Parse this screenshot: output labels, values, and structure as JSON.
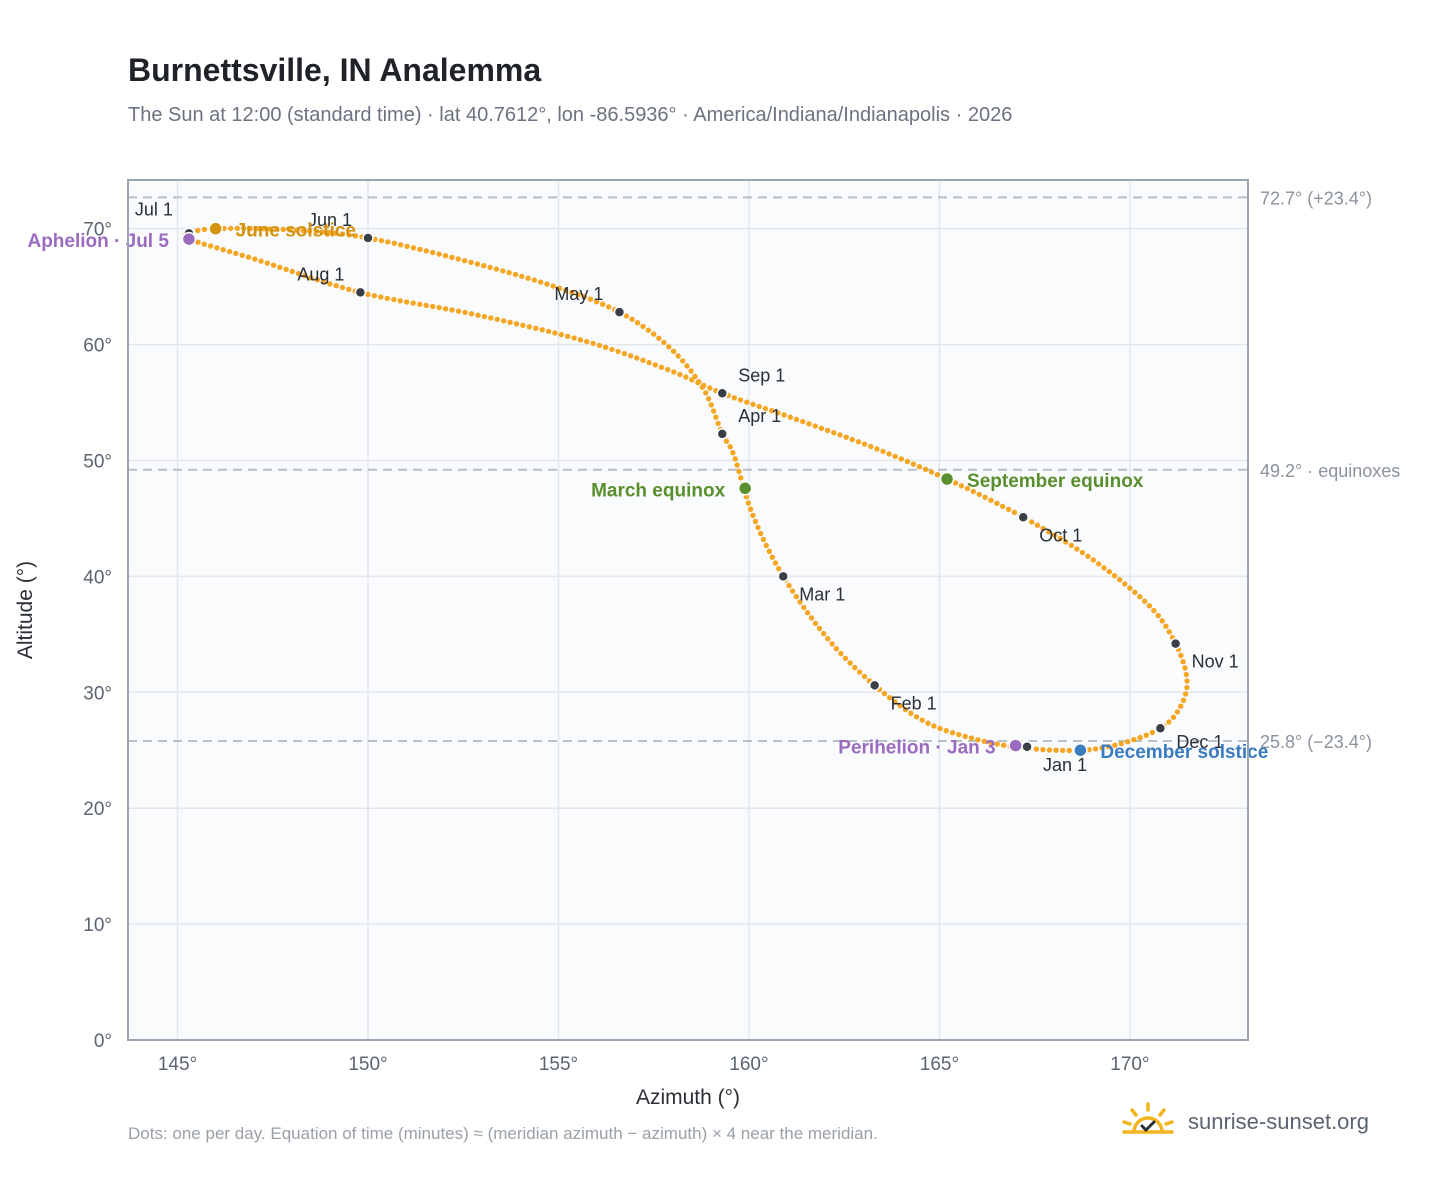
{
  "header": {
    "title": "Burnettsville, IN Analemma",
    "subtitle": "The Sun at 12:00 (standard time) · lat 40.7612°, lon -86.5936° · America/Indiana/Indianapolis · 2026"
  },
  "footer": {
    "note": "Dots: one per day. Equation of time (minutes) ≈ (meridian azimuth − azimuth) × 4 near the meridian.",
    "brand": "sunrise-sunset.org",
    "brand_icon": "sun-check-icon"
  },
  "colors": {
    "curve": "#f5a623",
    "month_marker": "#3a3f47",
    "june_solstice": "#d4920f",
    "december_solstice": "#3b7bbf",
    "equinox": "#5a8f2e",
    "apsides": "#9b6bbf",
    "reference_line": "#b8c0c8",
    "plot_bg": "#f9fbfd",
    "frame": "#9aa5b4"
  },
  "chart_data": {
    "type": "scatter",
    "title": "Burnettsville, IN Analemma",
    "xlabel": "Azimuth (°)",
    "ylabel": "Altitude (°)",
    "xlim": [
      143.7,
      173.1
    ],
    "ylim": [
      0,
      74.2
    ],
    "x_ticks": [
      "145°",
      "150°",
      "155°",
      "160°",
      "165°",
      "170°"
    ],
    "x_tick_values": [
      145,
      150,
      155,
      160,
      165,
      170
    ],
    "y_ticks": [
      "0°",
      "10°",
      "20°",
      "30°",
      "40°",
      "50°",
      "60°",
      "70°"
    ],
    "y_tick_values": [
      0,
      10,
      20,
      30,
      40,
      50,
      60,
      70
    ],
    "grid": true,
    "reference_lines": [
      {
        "y": 72.7,
        "label": "72.7° (+23.4°)"
      },
      {
        "y": 49.2,
        "label": "49.2° · equinoxes"
      },
      {
        "y": 25.8,
        "label": "25.8° (−23.4°)"
      }
    ],
    "month_markers": [
      {
        "label": "Jan 1",
        "x": 167.3,
        "y": 25.3
      },
      {
        "label": "Feb 1",
        "x": 163.3,
        "y": 30.6
      },
      {
        "label": "Mar 1",
        "x": 160.9,
        "y": 40.0
      },
      {
        "label": "Apr 1",
        "x": 159.3,
        "y": 52.3
      },
      {
        "label": "May 1",
        "x": 156.6,
        "y": 62.8
      },
      {
        "label": "Jun 1",
        "x": 150.0,
        "y": 69.2
      },
      {
        "label": "Jul 1",
        "x": 145.3,
        "y": 69.6
      },
      {
        "label": "Aug 1",
        "x": 149.8,
        "y": 64.5
      },
      {
        "label": "Sep 1",
        "x": 159.3,
        "y": 55.8
      },
      {
        "label": "Oct 1",
        "x": 167.2,
        "y": 45.1
      },
      {
        "label": "Nov 1",
        "x": 171.2,
        "y": 34.2
      },
      {
        "label": "Dec 1",
        "x": 170.8,
        "y": 26.9
      }
    ],
    "events": [
      {
        "label": "June solstice",
        "x": 146.0,
        "y": 70.0,
        "color_key": "june_solstice"
      },
      {
        "label": "Aphelion · Jul 5",
        "x": 145.3,
        "y": 69.1,
        "color_key": "apsides"
      },
      {
        "label": "March equinox",
        "x": 159.9,
        "y": 47.6,
        "color_key": "equinox"
      },
      {
        "label": "September equinox",
        "x": 165.2,
        "y": 48.4,
        "color_key": "equinox"
      },
      {
        "label": "Perihelion · Jan 3",
        "x": 167.0,
        "y": 25.4,
        "color_key": "apsides"
      },
      {
        "label": "December solstice",
        "x": 168.7,
        "y": 25.0,
        "color_key": "december_solstice"
      }
    ],
    "series": [
      {
        "points": [
          [
            167.2,
            25.2
          ],
          [
            165.9,
            26.0
          ],
          [
            164.6,
            27.5
          ],
          [
            163.3,
            30.6
          ],
          [
            162.1,
            34.5
          ],
          [
            160.9,
            40.0
          ],
          [
            160.1,
            45.3
          ],
          [
            159.6,
            50.5
          ],
          [
            159.3,
            52.3
          ],
          [
            158.8,
            56.2
          ],
          [
            157.9,
            59.8
          ],
          [
            156.6,
            62.8
          ],
          [
            154.9,
            65.0
          ],
          [
            152.7,
            67.1
          ],
          [
            150.0,
            69.2
          ],
          [
            148.0,
            69.9
          ],
          [
            146.0,
            70.0
          ],
          [
            145.3,
            69.6
          ],
          [
            145.3,
            69.1
          ],
          [
            147.1,
            67.3
          ],
          [
            149.8,
            64.5
          ],
          [
            152.8,
            62.6
          ],
          [
            155.7,
            60.3
          ],
          [
            157.9,
            57.8
          ],
          [
            159.3,
            55.8
          ],
          [
            161.2,
            53.6
          ],
          [
            163.2,
            51.2
          ],
          [
            165.2,
            48.4
          ],
          [
            167.2,
            45.1
          ],
          [
            169.0,
            41.5
          ],
          [
            170.5,
            37.5
          ],
          [
            171.2,
            34.2
          ],
          [
            171.5,
            31.0
          ],
          [
            171.3,
            28.6
          ],
          [
            170.8,
            26.9
          ],
          [
            169.8,
            25.6
          ],
          [
            168.7,
            25.0
          ],
          [
            167.2,
            25.2
          ]
        ]
      }
    ]
  }
}
